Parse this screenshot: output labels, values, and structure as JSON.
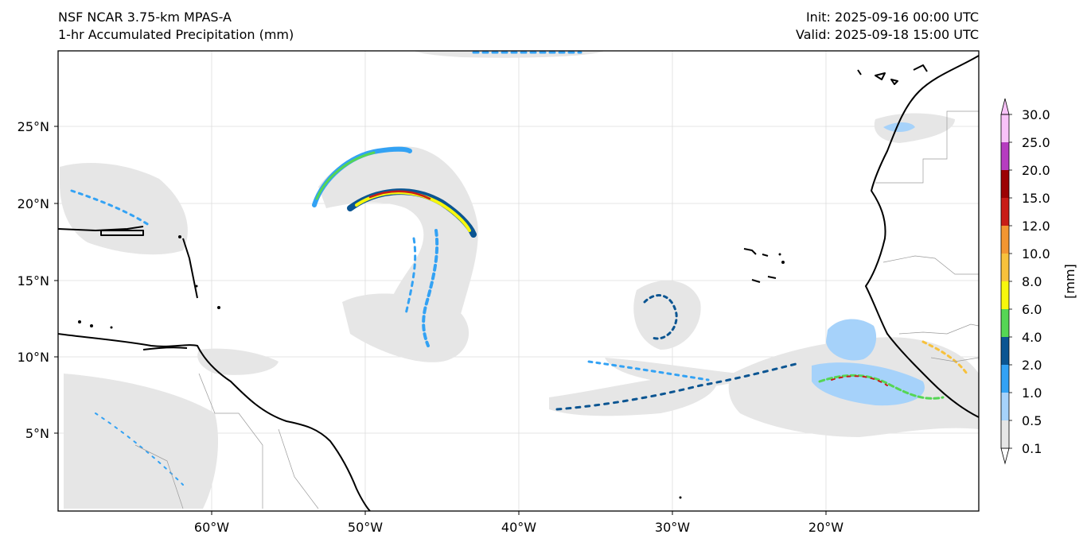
{
  "header": {
    "model": "NSF NCAR 3.75-km MPAS-A",
    "field": "1-hr Accumulated Precipitation (mm)",
    "init": "Init: 2025-09-16 00:00 UTC",
    "valid": "Valid: 2025-09-18 15:00 UTC"
  },
  "axes": {
    "lon_ticks": [
      "60°W",
      "50°W",
      "40°W",
      "30°W",
      "20°W"
    ],
    "lat_ticks": [
      "25°N",
      "20°N",
      "15°N",
      "10°N",
      "5°N"
    ]
  },
  "colorbar": {
    "unit_label": "[mm]",
    "levels": [
      "0.1",
      "0.5",
      "1.0",
      "2.0",
      "4.0",
      "6.0",
      "8.0",
      "10.0",
      "12.0",
      "15.0",
      "20.0",
      "25.0",
      "30.0"
    ],
    "colors": [
      "#e6e6e6",
      "#a6d2fa",
      "#33a2f4",
      "#0b5592",
      "#55d654",
      "#f7f70d",
      "#f7c13c",
      "#f39632",
      "#c81d17",
      "#9c0303",
      "#b63cc0",
      "#f8c2f8"
    ]
  },
  "colors": {
    "frame": "#000000",
    "coast": "#000000",
    "border": "#9a9a9a",
    "grid": "#dddddd"
  }
}
